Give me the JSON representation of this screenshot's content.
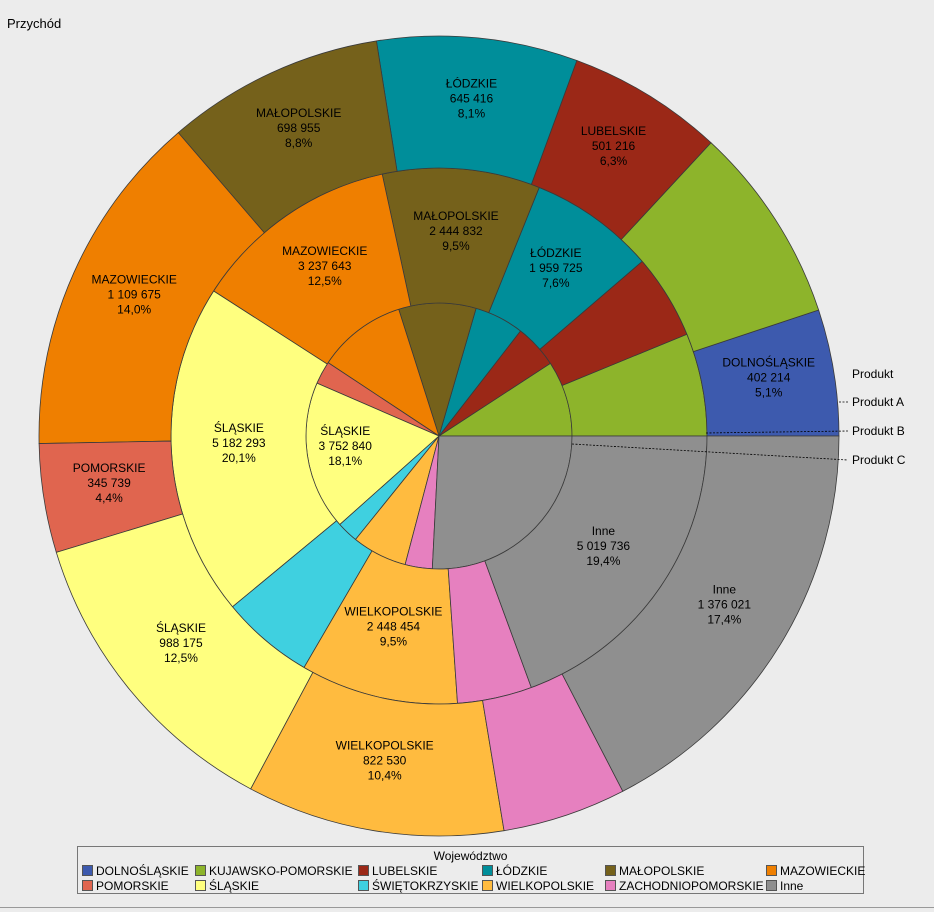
{
  "chart_data": {
    "type": "pie",
    "subtype": "multi-level donut (three rings)",
    "title": "Przychód",
    "ring_legend": {
      "title": "Produkt",
      "entries": [
        "Produkt A",
        "Produkt B",
        "Produkt C"
      ]
    },
    "legend": {
      "title": "Województwo",
      "placement": "bottom"
    },
    "categories": [
      "DOLNOŚLĄSKIE",
      "KUJAWSKO-POMORSKIE",
      "LUBELSKIE",
      "ŁÓDZKIE",
      "MAŁOPOLSKIE",
      "MAZOWIECKIE",
      "POMORSKIE",
      "ŚLĄSKIE",
      "ŚWIĘTOKRZYSKIE",
      "WIELKOPOLSKIE",
      "ZACHODNIOPOMORSKIE",
      "Inne"
    ],
    "colors": {
      "DOLNOŚLĄSKIE": "#3d5aae",
      "KUJAWSKO-POMORSKIE": "#8db42b",
      "LUBELSKIE": "#9b2817",
      "ŁÓDZKIE": "#008e9a",
      "MAŁOPOLSKIE": "#75611b",
      "MAZOWIECKIE": "#ef7f00",
      "POMORSKIE": "#e0654f",
      "ŚLĄSKIE": "#ffff7f",
      "ŚWIĘTOKRZYSKIE": "#3fd0e0",
      "WIELKOPOLSKIE": "#ffbb3f",
      "ZACHODNIOPOMORSKIE": "#e680bf",
      "Inne": "#8f8f8f"
    },
    "rings": [
      {
        "name": "Produkt A",
        "slices": [
          {
            "category": "DOLNOŚLĄSKIE",
            "pct": 0
          },
          {
            "category": "KUJAWSKO-POMORSKIE",
            "pct": 9.2
          },
          {
            "category": "LUBELSKIE",
            "pct": 5.3
          },
          {
            "category": "ŁÓDZKIE",
            "pct": 6.0
          },
          {
            "category": "MAŁOPOLSKIE",
            "pct": 9.4
          },
          {
            "category": "MAZOWIECKIE",
            "pct": 10.8
          },
          {
            "category": "POMORSKIE",
            "pct": 2.8
          },
          {
            "category": "ŚLĄSKIE",
            "pct": 18.1,
            "value": "3 752 840",
            "pct_label": "18,1%"
          },
          {
            "category": "ŚWIĘTOKRZYSKIE",
            "pct": 2.6
          },
          {
            "category": "WIELKOPOLSKIE",
            "pct": 6.7
          },
          {
            "category": "ZACHODNIOPOMORSKIE",
            "pct": 3.3
          },
          {
            "category": "Inne",
            "pct": 25.8
          }
        ]
      },
      {
        "name": "Produkt B",
        "slices": [
          {
            "category": "DOLNOŚLĄSKIE",
            "pct": 0
          },
          {
            "category": "KUJAWSKO-POMORSKIE",
            "pct": 6.2
          },
          {
            "category": "LUBELSKIE",
            "pct": 5.1
          },
          {
            "category": "ŁÓDZKIE",
            "pct": 7.6,
            "value": "1 959 725",
            "pct_label": "7,6%"
          },
          {
            "category": "MAŁOPOLSKIE",
            "pct": 9.5,
            "value": "2 444 832",
            "pct_label": "9,5%"
          },
          {
            "category": "MAZOWIECKIE",
            "pct": 12.5,
            "value": "3 237 643",
            "pct_label": "12,5%"
          },
          {
            "category": "POMORSKIE",
            "pct": 0
          },
          {
            "category": "ŚLĄSKIE",
            "pct": 20.1,
            "value": "5 182 293",
            "pct_label": "20,1%"
          },
          {
            "category": "ŚWIĘTOKRZYSKIE",
            "pct": 5.6
          },
          {
            "category": "WIELKOPOLSKIE",
            "pct": 9.5,
            "value": "2 448 454",
            "pct_label": "9,5%"
          },
          {
            "category": "ZACHODNIOPOMORSKIE",
            "pct": 4.5
          },
          {
            "category": "Inne",
            "pct": 19.4,
            "value": "5 019 736",
            "pct_label": "19,4%"
          }
        ]
      },
      {
        "name": "Produkt C",
        "slices": [
          {
            "category": "DOLNOŚLĄSKIE",
            "pct": 5.1,
            "value": "402 214",
            "pct_label": "5,1%"
          },
          {
            "category": "KUJAWSKO-POMORSKIE",
            "pct": 8.0
          },
          {
            "category": "LUBELSKIE",
            "pct": 6.3,
            "value": "501 216",
            "pct_label": "6,3%"
          },
          {
            "category": "ŁÓDZKIE",
            "pct": 8.1,
            "value": "645 416",
            "pct_label": "8,1%"
          },
          {
            "category": "MAŁOPOLSKIE",
            "pct": 8.8,
            "value": "698 955",
            "pct_label": "8,8%"
          },
          {
            "category": "MAZOWIECKIE",
            "pct": 14.0,
            "value": "1 109 675",
            "pct_label": "14,0%"
          },
          {
            "category": "POMORSKIE",
            "pct": 4.4,
            "value": "345 739",
            "pct_label": "4,4%"
          },
          {
            "category": "ŚLĄSKIE",
            "pct": 12.5,
            "value": "988 175",
            "pct_label": "12,5%"
          },
          {
            "category": "ŚWIĘTOKRZYSKIE",
            "pct": 0
          },
          {
            "category": "WIELKOPOLSKIE",
            "pct": 10.4,
            "value": "822 530",
            "pct_label": "10,4%"
          },
          {
            "category": "ZACHODNIOPOMORSKIE",
            "pct": 5.0
          },
          {
            "category": "Inne",
            "pct": 17.4,
            "value": "1 376 021",
            "pct_label": "17,4%"
          }
        ]
      }
    ]
  }
}
